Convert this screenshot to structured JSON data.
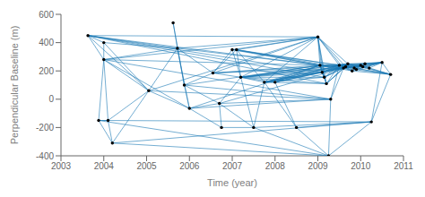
{
  "chart_data": {
    "type": "network",
    "x": [
      2003.63,
      2003.88,
      2004.0,
      2004.0,
      2004.1,
      2004.2,
      2005.05,
      2005.62,
      2005.72,
      2005.88,
      2006.0,
      2006.55,
      2006.7,
      2006.75,
      2007.0,
      2007.1,
      2007.2,
      2007.5,
      2007.75,
      2008.0,
      2008.5,
      2009.0,
      2009.05,
      2009.1,
      2009.15,
      2009.2,
      2009.25,
      2009.3,
      2009.5,
      2009.6,
      2009.65,
      2009.7,
      2009.8,
      2009.85,
      2009.9,
      2010.0,
      2010.05,
      2010.1,
      2010.2,
      2010.25,
      2010.5,
      2010.7
    ],
    "values": [
      450,
      -150,
      400,
      280,
      -150,
      -310,
      60,
      540,
      360,
      100,
      -65,
      185,
      -30,
      -200,
      350,
      350,
      155,
      -200,
      120,
      120,
      -200,
      440,
      240,
      190,
      155,
      110,
      -400,
      0,
      240,
      220,
      230,
      250,
      200,
      220,
      210,
      240,
      230,
      250,
      220,
      -160,
      260,
      175
    ],
    "edges": [
      [
        0,
        2
      ],
      [
        0,
        3
      ],
      [
        0,
        6
      ],
      [
        0,
        8
      ],
      [
        1,
        3
      ],
      [
        1,
        4
      ],
      [
        1,
        5
      ],
      [
        2,
        3
      ],
      [
        2,
        6
      ],
      [
        2,
        8
      ],
      [
        3,
        4
      ],
      [
        3,
        6
      ],
      [
        3,
        8
      ],
      [
        3,
        10
      ],
      [
        4,
        5
      ],
      [
        4,
        6
      ],
      [
        5,
        6
      ],
      [
        6,
        8
      ],
      [
        6,
        10
      ],
      [
        7,
        8
      ],
      [
        7,
        9
      ],
      [
        8,
        9
      ],
      [
        8,
        10
      ],
      [
        8,
        11
      ],
      [
        9,
        10
      ],
      [
        9,
        11
      ],
      [
        9,
        12
      ],
      [
        10,
        12
      ],
      [
        10,
        13
      ],
      [
        11,
        14
      ],
      [
        11,
        15
      ],
      [
        11,
        16
      ],
      [
        12,
        13
      ],
      [
        12,
        16
      ],
      [
        12,
        17
      ],
      [
        13,
        17
      ],
      [
        14,
        15
      ],
      [
        14,
        16
      ],
      [
        15,
        16
      ],
      [
        15,
        18
      ],
      [
        16,
        17
      ],
      [
        16,
        18
      ],
      [
        16,
        19
      ],
      [
        17,
        18
      ],
      [
        18,
        19
      ],
      [
        18,
        20
      ],
      [
        19,
        20
      ],
      [
        0,
        21
      ],
      [
        0,
        22
      ],
      [
        0,
        23
      ],
      [
        0,
        24
      ],
      [
        0,
        25
      ],
      [
        1,
        26
      ],
      [
        1,
        39
      ],
      [
        3,
        21
      ],
      [
        3,
        22
      ],
      [
        3,
        27
      ],
      [
        5,
        26
      ],
      [
        5,
        39
      ],
      [
        6,
        21
      ],
      [
        6,
        27
      ],
      [
        8,
        21
      ],
      [
        8,
        22
      ],
      [
        9,
        22
      ],
      [
        9,
        27
      ],
      [
        10,
        22
      ],
      [
        10,
        27
      ],
      [
        11,
        21
      ],
      [
        11,
        22
      ],
      [
        11,
        28
      ],
      [
        11,
        29
      ],
      [
        12,
        27
      ],
      [
        12,
        29
      ],
      [
        14,
        21
      ],
      [
        14,
        22
      ],
      [
        14,
        28
      ],
      [
        15,
        21
      ],
      [
        15,
        22
      ],
      [
        15,
        28
      ],
      [
        15,
        29
      ],
      [
        16,
        21
      ],
      [
        16,
        22
      ],
      [
        16,
        23
      ],
      [
        16,
        24
      ],
      [
        16,
        25
      ],
      [
        16,
        28
      ],
      [
        16,
        29
      ],
      [
        16,
        30
      ],
      [
        16,
        31
      ],
      [
        17,
        26
      ],
      [
        17,
        39
      ],
      [
        18,
        21
      ],
      [
        18,
        22
      ],
      [
        18,
        23
      ],
      [
        18,
        24
      ],
      [
        18,
        25
      ],
      [
        18,
        28
      ],
      [
        18,
        29
      ],
      [
        18,
        30
      ],
      [
        18,
        31
      ],
      [
        19,
        22
      ],
      [
        19,
        23
      ],
      [
        19,
        28
      ],
      [
        19,
        29
      ],
      [
        19,
        30
      ],
      [
        20,
        26
      ],
      [
        20,
        39
      ],
      [
        21,
        22
      ],
      [
        21,
        23
      ],
      [
        21,
        24
      ],
      [
        21,
        25
      ],
      [
        21,
        28
      ],
      [
        21,
        29
      ],
      [
        21,
        30
      ],
      [
        21,
        31
      ],
      [
        22,
        23
      ],
      [
        22,
        24
      ],
      [
        22,
        25
      ],
      [
        22,
        28
      ],
      [
        22,
        29
      ],
      [
        22,
        30
      ],
      [
        22,
        31
      ],
      [
        22,
        32
      ],
      [
        23,
        24
      ],
      [
        23,
        25
      ],
      [
        23,
        28
      ],
      [
        23,
        29
      ],
      [
        23,
        30
      ],
      [
        23,
        31
      ],
      [
        24,
        25
      ],
      [
        24,
        28
      ],
      [
        24,
        29
      ],
      [
        24,
        30
      ],
      [
        24,
        31
      ],
      [
        25,
        28
      ],
      [
        25,
        29
      ],
      [
        25,
        30
      ],
      [
        25,
        31
      ],
      [
        26,
        27
      ],
      [
        26,
        39
      ],
      [
        27,
        28
      ],
      [
        27,
        29
      ],
      [
        28,
        29
      ],
      [
        28,
        30
      ],
      [
        28,
        31
      ],
      [
        28,
        32
      ],
      [
        28,
        33
      ],
      [
        28,
        34
      ],
      [
        28,
        35
      ],
      [
        28,
        36
      ],
      [
        28,
        37
      ],
      [
        28,
        38
      ],
      [
        28,
        40
      ],
      [
        28,
        41
      ],
      [
        29,
        30
      ],
      [
        29,
        31
      ],
      [
        29,
        32
      ],
      [
        29,
        35
      ],
      [
        29,
        36
      ],
      [
        29,
        40
      ],
      [
        29,
        41
      ],
      [
        30,
        31
      ],
      [
        30,
        32
      ],
      [
        30,
        35
      ],
      [
        30,
        36
      ],
      [
        30,
        40
      ],
      [
        30,
        41
      ],
      [
        31,
        32
      ],
      [
        31,
        35
      ],
      [
        31,
        36
      ],
      [
        31,
        40
      ],
      [
        31,
        41
      ],
      [
        32,
        35
      ],
      [
        32,
        40
      ],
      [
        32,
        41
      ],
      [
        33,
        35
      ],
      [
        33,
        40
      ],
      [
        34,
        35
      ],
      [
        34,
        40
      ],
      [
        35,
        36
      ],
      [
        35,
        40
      ],
      [
        35,
        41
      ],
      [
        36,
        40
      ],
      [
        36,
        41
      ],
      [
        37,
        40
      ],
      [
        38,
        40
      ],
      [
        39,
        40
      ],
      [
        39,
        41
      ],
      [
        40,
        41
      ]
    ],
    "color": "#000000",
    "edge_color": "#1777b4",
    "xlim": [
      2003,
      2011
    ],
    "ylim": [
      -400,
      600
    ],
    "xticks": [
      2003,
      2004,
      2005,
      2006,
      2007,
      2008,
      2009,
      2010,
      2011
    ],
    "yticks": [
      -400,
      -200,
      0,
      200,
      400,
      600
    ],
    "xlabel": "Time (year)",
    "ylabel": "Perpendicular Baseline (m)",
    "grid": false
  }
}
